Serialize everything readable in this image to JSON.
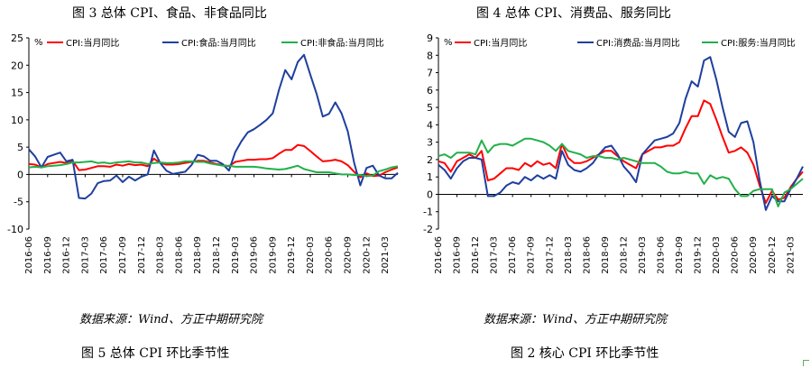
{
  "figures": {
    "top_left_title": "图 3 总体 CPI、食品、非食品同比",
    "top_right_title": "图 4 总体 CPI、消费品、服务同比",
    "source_left": "数据来源：Wind、方正中期研究院",
    "source_right": "数据来源：Wind、方正中期研究院",
    "caption_left": "图 5 总体 CPI 环比季节性",
    "caption_right": "图 2 核心 CPI 环比季节性"
  },
  "colors": {
    "red": "#ff0000",
    "blue": "#1f3f9f",
    "green": "#22b04a",
    "grid": "#d0d0d0"
  },
  "chart_data": [
    {
      "type": "line",
      "unit_label": "%",
      "ylim": [
        -10,
        25
      ],
      "yticks": [
        -10,
        -5,
        0,
        5,
        10,
        15,
        20,
        25
      ],
      "xticks": [
        "2016-06",
        "2016-09",
        "2016-12",
        "2017-03",
        "2017-06",
        "2017-09",
        "2017-12",
        "2018-03",
        "2018-06",
        "2018-09",
        "2018-12",
        "2019-03",
        "2019-06",
        "2019-09",
        "2019-12",
        "2020-03",
        "2020-06",
        "2020-09",
        "2020-12",
        "2021-03"
      ],
      "x": [
        "2016-06",
        "2016-07",
        "2016-08",
        "2016-09",
        "2016-10",
        "2016-11",
        "2016-12",
        "2017-01",
        "2017-02",
        "2017-03",
        "2017-04",
        "2017-05",
        "2017-06",
        "2017-07",
        "2017-08",
        "2017-09",
        "2017-10",
        "2017-11",
        "2017-12",
        "2018-01",
        "2018-02",
        "2018-03",
        "2018-04",
        "2018-05",
        "2018-06",
        "2018-07",
        "2018-08",
        "2018-09",
        "2018-10",
        "2018-11",
        "2018-12",
        "2019-01",
        "2019-02",
        "2019-03",
        "2019-04",
        "2019-05",
        "2019-06",
        "2019-07",
        "2019-08",
        "2019-09",
        "2019-10",
        "2019-11",
        "2019-12",
        "2020-01",
        "2020-02",
        "2020-03",
        "2020-04",
        "2020-05",
        "2020-06",
        "2020-07",
        "2020-08",
        "2020-09",
        "2020-10",
        "2020-11",
        "2020-12",
        "2021-01",
        "2021-02",
        "2021-03",
        "2021-04",
        "2021-05"
      ],
      "series": [
        {
          "name": "CPI:当月同比",
          "color": "#ff0000",
          "values": [
            1.9,
            1.8,
            1.3,
            1.9,
            2.1,
            2.3,
            2.1,
            2.5,
            0.8,
            0.9,
            1.2,
            1.5,
            1.5,
            1.4,
            1.8,
            1.6,
            1.9,
            1.7,
            1.8,
            1.5,
            2.9,
            2.1,
            1.8,
            1.8,
            1.9,
            2.1,
            2.3,
            2.5,
            2.5,
            2.2,
            1.9,
            1.7,
            1.5,
            2.3,
            2.5,
            2.7,
            2.7,
            2.8,
            2.8,
            3.0,
            3.8,
            4.5,
            4.5,
            5.4,
            5.2,
            4.3,
            3.3,
            2.4,
            2.5,
            2.7,
            2.4,
            1.7,
            0.5,
            -0.5,
            0.2,
            -0.3,
            -0.2,
            0.4,
            0.9,
            1.3
          ]
        },
        {
          "name": "CPI:食品:当月同比",
          "color": "#1f3f9f",
          "values": [
            4.6,
            3.3,
            1.3,
            3.2,
            3.6,
            4.0,
            2.4,
            2.7,
            -4.3,
            -4.4,
            -3.5,
            -1.6,
            -1.2,
            -1.1,
            -0.2,
            -1.4,
            -0.4,
            -1.1,
            -0.4,
            0.0,
            4.4,
            2.1,
            0.7,
            0.1,
            0.3,
            0.5,
            1.7,
            3.6,
            3.3,
            2.5,
            2.5,
            1.9,
            0.7,
            4.1,
            6.1,
            7.7,
            8.3,
            9.1,
            10.0,
            11.2,
            15.5,
            19.1,
            17.4,
            20.6,
            21.9,
            18.3,
            14.8,
            10.6,
            11.1,
            13.2,
            11.2,
            7.9,
            2.2,
            -2.0,
            1.2,
            1.6,
            -0.2,
            -0.7,
            -0.7,
            0.3
          ]
        },
        {
          "name": "CPI:非食品:当月同比",
          "color": "#22b04a",
          "values": [
            1.3,
            1.4,
            1.3,
            1.5,
            1.6,
            1.7,
            1.9,
            2.2,
            2.2,
            2.3,
            2.4,
            2.1,
            2.2,
            2.0,
            2.2,
            2.3,
            2.4,
            2.2,
            2.2,
            1.9,
            2.1,
            2.2,
            2.1,
            2.1,
            2.2,
            2.4,
            2.4,
            2.3,
            2.3,
            2.0,
            1.8,
            1.6,
            1.6,
            1.4,
            1.4,
            1.4,
            1.4,
            1.3,
            1.1,
            1.0,
            0.9,
            1.0,
            1.3,
            1.6,
            1.0,
            0.7,
            0.4,
            0.4,
            0.4,
            0.2,
            0.0,
            0.0,
            -0.1,
            -0.1,
            -0.3,
            -0.2,
            0.6,
            0.9,
            1.3,
            1.5
          ]
        }
      ]
    },
    {
      "type": "line",
      "unit_label": "%",
      "ylim": [
        -2,
        9
      ],
      "yticks": [
        -2,
        -1,
        0,
        1,
        2,
        3,
        4,
        5,
        6,
        7,
        8,
        9
      ],
      "xticks": [
        "2016-06",
        "2016-09",
        "2016-12",
        "2017-03",
        "2017-06",
        "2017-09",
        "2017-12",
        "2018-03",
        "2018-06",
        "2018-09",
        "2018-12",
        "2019-03",
        "2019-06",
        "2019-09",
        "2019-12",
        "2020-03",
        "2020-06",
        "2020-09",
        "2020-12",
        "2021-03"
      ],
      "x": [
        "2016-06",
        "2016-07",
        "2016-08",
        "2016-09",
        "2016-10",
        "2016-11",
        "2016-12",
        "2017-01",
        "2017-02",
        "2017-03",
        "2017-04",
        "2017-05",
        "2017-06",
        "2017-07",
        "2017-08",
        "2017-09",
        "2017-10",
        "2017-11",
        "2017-12",
        "2018-01",
        "2018-02",
        "2018-03",
        "2018-04",
        "2018-05",
        "2018-06",
        "2018-07",
        "2018-08",
        "2018-09",
        "2018-10",
        "2018-11",
        "2018-12",
        "2019-01",
        "2019-02",
        "2019-03",
        "2019-04",
        "2019-05",
        "2019-06",
        "2019-07",
        "2019-08",
        "2019-09",
        "2019-10",
        "2019-11",
        "2019-12",
        "2020-01",
        "2020-02",
        "2020-03",
        "2020-04",
        "2020-05",
        "2020-06",
        "2020-07",
        "2020-08",
        "2020-09",
        "2020-10",
        "2020-11",
        "2020-12",
        "2021-01",
        "2021-02",
        "2021-03",
        "2021-04",
        "2021-05"
      ],
      "series": [
        {
          "name": "CPI:当月同比",
          "color": "#ff0000",
          "values": [
            1.9,
            1.8,
            1.3,
            1.9,
            2.1,
            2.3,
            2.1,
            2.5,
            0.8,
            0.9,
            1.2,
            1.5,
            1.5,
            1.4,
            1.8,
            1.6,
            1.9,
            1.7,
            1.8,
            1.5,
            2.9,
            2.1,
            1.8,
            1.8,
            1.9,
            2.1,
            2.3,
            2.5,
            2.5,
            2.2,
            1.9,
            1.7,
            1.5,
            2.3,
            2.5,
            2.7,
            2.7,
            2.8,
            2.8,
            3.0,
            3.8,
            4.5,
            4.5,
            5.4,
            5.2,
            4.3,
            3.3,
            2.4,
            2.5,
            2.7,
            2.4,
            1.7,
            0.5,
            -0.5,
            0.2,
            -0.3,
            -0.2,
            0.4,
            0.9,
            1.3
          ]
        },
        {
          "name": "CPI:消费品:当月同比",
          "color": "#1f3f9f",
          "values": [
            1.7,
            1.4,
            0.9,
            1.5,
            1.9,
            2.1,
            2.1,
            2.0,
            -0.1,
            -0.1,
            0.1,
            0.5,
            0.7,
            0.6,
            1.0,
            0.8,
            1.1,
            0.9,
            1.1,
            0.9,
            2.5,
            1.7,
            1.4,
            1.3,
            1.5,
            1.8,
            2.3,
            2.7,
            2.8,
            2.3,
            1.6,
            1.2,
            0.7,
            2.3,
            2.7,
            3.1,
            3.2,
            3.3,
            3.5,
            4.1,
            5.5,
            6.5,
            6.2,
            7.7,
            7.9,
            6.6,
            5.0,
            3.6,
            3.3,
            4.1,
            4.2,
            3.0,
            0.8,
            -0.9,
            -0.1,
            -0.4,
            -0.4,
            0.3,
            0.9,
            1.6
          ]
        },
        {
          "name": "CPI:服务:当月同比",
          "color": "#22b04a",
          "values": [
            2.2,
            2.3,
            2.1,
            2.4,
            2.4,
            2.4,
            2.3,
            3.1,
            2.4,
            2.8,
            2.9,
            2.9,
            2.8,
            3.0,
            3.2,
            3.2,
            3.1,
            3.0,
            2.8,
            2.5,
            2.9,
            2.5,
            2.4,
            2.3,
            2.1,
            2.2,
            2.2,
            2.1,
            2.1,
            2.0,
            2.1,
            2.0,
            1.9,
            1.8,
            1.8,
            1.8,
            1.6,
            1.3,
            1.2,
            1.2,
            1.3,
            1.2,
            1.2,
            0.6,
            1.1,
            0.9,
            1.0,
            0.9,
            0.3,
            -0.1,
            -0.1,
            0.2,
            0.3,
            0.3,
            0.3,
            -0.7,
            0.1,
            0.3,
            0.6,
            0.9
          ]
        }
      ]
    }
  ]
}
